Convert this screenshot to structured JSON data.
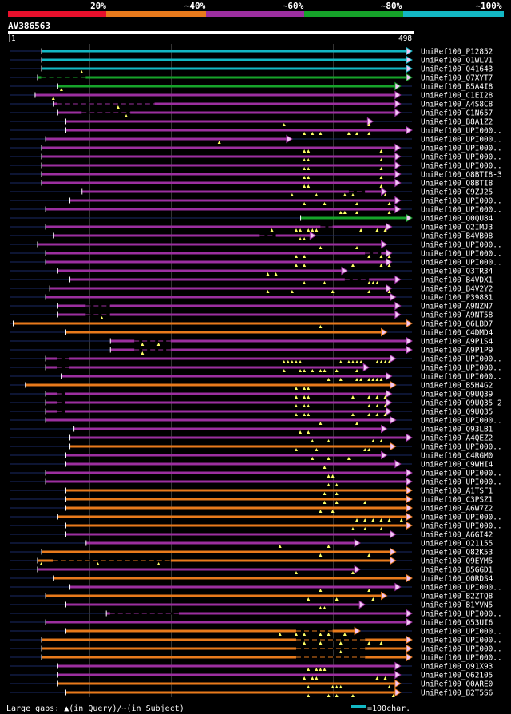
{
  "identity_legend": {
    "labels": [
      "20%",
      "~40%",
      "~60%",
      "~80%",
      "~100%"
    ],
    "colors": [
      "#e8102c",
      "#e87a1c",
      "#9c2fa0",
      "#16a32a",
      "#13b8c4"
    ]
  },
  "query": {
    "id": "AV386563",
    "start": "1",
    "end": "498",
    "length": 498
  },
  "colors": {
    "background": "#000000",
    "dim_line": "#1a2a66",
    "gap_mark": "#ffff66",
    "arrow_fill": "#f2c6f5"
  },
  "hits": [
    {
      "label": "UniRef100_P12852",
      "start": 40,
      "end": 498,
      "color": "#13b8c4",
      "marks": [],
      "breaks": []
    },
    {
      "label": "UniRef100_Q1WLV1",
      "start": 40,
      "end": 498,
      "color": "#13b8c4",
      "marks": [],
      "breaks": []
    },
    {
      "label": "UniRef100_Q41643",
      "start": 40,
      "end": 498,
      "color": "#13b8c4",
      "marks": [
        90
      ],
      "breaks": []
    },
    {
      "label": "UniRef100_Q7XYT7",
      "start": 35,
      "end": 498,
      "color": "#16a32a",
      "marks": [],
      "breaks": [
        [
          40,
          95
        ]
      ]
    },
    {
      "label": "UniRef100_B5A4I8",
      "start": 60,
      "end": 484,
      "color": "#16a32a",
      "marks": [
        65
      ],
      "breaks": []
    },
    {
      "label": "UniRef100_C1EI28",
      "start": 32,
      "end": 484,
      "color": "#9c2fa0",
      "marks": [
        55
      ],
      "breaks": []
    },
    {
      "label": "UniRef100_A4S8C8",
      "start": 55,
      "end": 484,
      "color": "#9c2fa0",
      "marks": [
        135
      ],
      "breaks": [
        [
          60,
          180
        ]
      ]
    },
    {
      "label": "UniRef100_C1N657",
      "start": 60,
      "end": 484,
      "color": "#9c2fa0",
      "marks": [
        145
      ],
      "breaks": [
        [
          90,
          150
        ]
      ]
    },
    {
      "label": "UniRef100_B8A1Z2",
      "start": 70,
      "end": 450,
      "color": "#9c2fa0",
      "marks": [
        340,
        445
      ],
      "breaks": []
    },
    {
      "label": "UniRef100_UPI000..",
      "start": 70,
      "end": 498,
      "color": "#9c2fa0",
      "marks": [
        365,
        375,
        385,
        420,
        430,
        445
      ],
      "breaks": []
    },
    {
      "label": "UniRef100_UPI000..",
      "start": 45,
      "end": 350,
      "color": "#9c2fa0",
      "marks": [
        260
      ],
      "breaks": []
    },
    {
      "label": "UniRef100_UPI000..",
      "start": 40,
      "end": 484,
      "color": "#9c2fa0",
      "marks": [
        365,
        370,
        460
      ],
      "breaks": []
    },
    {
      "label": "UniRef100_UPI000..",
      "start": 40,
      "end": 484,
      "color": "#9c2fa0",
      "marks": [
        365,
        370,
        460
      ],
      "breaks": []
    },
    {
      "label": "UniRef100_UPI000..",
      "start": 40,
      "end": 484,
      "color": "#9c2fa0",
      "marks": [
        365,
        370,
        460
      ],
      "breaks": []
    },
    {
      "label": "UniRef100_Q8BTI8-3",
      "start": 40,
      "end": 484,
      "color": "#9c2fa0",
      "marks": [
        365,
        370,
        460
      ],
      "breaks": []
    },
    {
      "label": "UniRef100_Q8BTI8",
      "start": 40,
      "end": 484,
      "color": "#9c2fa0",
      "marks": [
        365,
        370,
        460
      ],
      "breaks": []
    },
    {
      "label": "UniRef100_C9ZJ25",
      "start": 90,
      "end": 467,
      "color": "#9c2fa0",
      "marks": [
        350,
        380,
        415,
        425,
        465
      ],
      "breaks": [
        [
          420,
          440
        ]
      ]
    },
    {
      "label": "UniRef100_UPI000..",
      "start": 75,
      "end": 484,
      "color": "#9c2fa0",
      "marks": [
        365,
        390,
        430,
        470
      ],
      "breaks": []
    },
    {
      "label": "UniRef100_UPI000..",
      "start": 45,
      "end": 484,
      "color": "#9c2fa0",
      "marks": [
        410,
        415,
        430,
        470
      ],
      "breaks": []
    },
    {
      "label": "UniRef100_Q0QU84",
      "start": 360,
      "end": 498,
      "color": "#16a32a",
      "marks": [],
      "breaks": []
    },
    {
      "label": "UniRef100_Q2IMJ3",
      "start": 45,
      "end": 473,
      "color": "#9c2fa0",
      "marks": [
        325,
        355,
        360,
        370,
        375,
        380,
        435,
        455,
        465
      ],
      "breaks": [
        [
          385,
          400
        ]
      ]
    },
    {
      "label": "UniRef100_B4VB08",
      "start": 55,
      "end": 379,
      "color": "#9c2fa0",
      "marks": [
        360,
        365
      ],
      "breaks": [
        [
          310,
          330
        ]
      ]
    },
    {
      "label": "UniRef100_UPI000..",
      "start": 35,
      "end": 467,
      "color": "#9c2fa0",
      "marks": [
        385,
        430
      ],
      "breaks": []
    },
    {
      "label": "UniRef100_UPI000..",
      "start": 45,
      "end": 473,
      "color": "#9c2fa0",
      "marks": [
        355,
        365,
        445,
        460,
        470
      ],
      "breaks": [
        [
          440,
          460
        ]
      ]
    },
    {
      "label": "UniRef100_UPI000..",
      "start": 45,
      "end": 473,
      "color": "#9c2fa0",
      "marks": [
        355,
        365,
        425,
        460,
        470
      ],
      "breaks": []
    },
    {
      "label": "UniRef100_Q3TR34",
      "start": 60,
      "end": 418,
      "color": "#9c2fa0",
      "marks": [
        320,
        330
      ],
      "breaks": []
    },
    {
      "label": "UniRef100_B4VDX1",
      "start": 75,
      "end": 484,
      "color": "#9c2fa0",
      "marks": [
        365,
        390,
        445,
        450,
        455
      ],
      "breaks": [
        [
          415,
          445
        ]
      ]
    },
    {
      "label": "UniRef100_B4V2Y2",
      "start": 50,
      "end": 473,
      "color": "#9c2fa0",
      "marks": [
        320,
        350,
        400,
        445,
        470
      ],
      "breaks": []
    },
    {
      "label": "UniRef100_P39881",
      "start": 45,
      "end": 478,
      "color": "#9c2fa0",
      "marks": [],
      "breaks": []
    },
    {
      "label": "UniRef100_A9NZN7",
      "start": 60,
      "end": 484,
      "color": "#9c2fa0",
      "marks": [],
      "breaks": [
        [
          95,
          125
        ]
      ]
    },
    {
      "label": "UniRef100_A9NT58",
      "start": 60,
      "end": 484,
      "color": "#9c2fa0",
      "marks": [
        115
      ],
      "breaks": [
        [
          95,
          125
        ]
      ]
    },
    {
      "label": "UniRef100_Q6LBD7",
      "start": 5,
      "end": 498,
      "color": "#e87a1c",
      "marks": [
        385
      ],
      "breaks": []
    },
    {
      "label": "UniRef100_C4DMD4",
      "start": 70,
      "end": 467,
      "color": "#e87a1c",
      "marks": [],
      "breaks": []
    },
    {
      "label": "UniRef100_A9P1S4",
      "start": 125,
      "end": 498,
      "color": "#9c2fa0",
      "marks": [
        165,
        185
      ],
      "breaks": [
        [
          155,
          200
        ]
      ]
    },
    {
      "label": "UniRef100_A9P1P9",
      "start": 125,
      "end": 498,
      "color": "#9c2fa0",
      "marks": [
        165
      ],
      "breaks": [
        [
          155,
          200
        ]
      ]
    },
    {
      "label": "UniRef100_UPI000..",
      "start": 45,
      "end": 478,
      "color": "#9c2fa0",
      "marks": [
        340,
        345,
        350,
        355,
        360,
        410,
        420,
        425,
        430,
        435,
        455,
        460,
        465,
        470
      ],
      "breaks": [
        [
          60,
          75
        ]
      ]
    },
    {
      "label": "UniRef100_UPI000..",
      "start": 45,
      "end": 445,
      "color": "#9c2fa0",
      "marks": [
        340,
        360,
        365,
        375,
        385,
        390,
        405,
        430
      ],
      "breaks": [
        [
          60,
          75
        ]
      ]
    },
    {
      "label": "UniRef100_UPI000..",
      "start": 65,
      "end": 473,
      "color": "#9c2fa0",
      "marks": [
        395,
        410,
        430,
        435,
        445,
        450,
        455,
        460
      ],
      "breaks": []
    },
    {
      "label": "UniRef100_B5H4G2",
      "start": 20,
      "end": 478,
      "color": "#e87a1c",
      "marks": [
        355,
        365,
        370
      ],
      "breaks": []
    },
    {
      "label": "UniRef100_Q9UQ39",
      "start": 45,
      "end": 473,
      "color": "#9c2fa0",
      "marks": [
        355,
        365,
        370,
        425,
        445,
        455,
        465
      ],
      "breaks": [
        [
          60,
          70
        ]
      ]
    },
    {
      "label": "UniRef100_Q9UQ35-2",
      "start": 45,
      "end": 473,
      "color": "#9c2fa0",
      "marks": [
        355,
        365,
        370,
        445,
        455,
        465
      ],
      "breaks": [
        [
          60,
          70
        ]
      ]
    },
    {
      "label": "UniRef100_Q9UQ35",
      "start": 45,
      "end": 473,
      "color": "#9c2fa0",
      "marks": [
        355,
        365,
        370,
        425,
        445,
        455,
        465
      ],
      "breaks": [
        [
          60,
          70
        ]
      ]
    },
    {
      "label": "UniRef100_UPI000..",
      "start": 45,
      "end": 478,
      "color": "#9c2fa0",
      "marks": [
        385,
        430
      ],
      "breaks": []
    },
    {
      "label": "UniRef100_Q93LB1",
      "start": 80,
      "end": 467,
      "color": "#9c2fa0",
      "marks": [
        360,
        370
      ],
      "breaks": []
    },
    {
      "label": "UniRef100_A4QEZ2",
      "start": 75,
      "end": 498,
      "color": "#9c2fa0",
      "marks": [
        375,
        395,
        450,
        460
      ],
      "breaks": []
    },
    {
      "label": "UniRef100_UPI000..",
      "start": 75,
      "end": 478,
      "color": "#e87a1c",
      "marks": [
        355,
        380,
        440,
        445
      ],
      "breaks": []
    },
    {
      "label": "UniRef100_C4RGM0",
      "start": 70,
      "end": 467,
      "color": "#9c2fa0",
      "marks": [
        375,
        395,
        420
      ],
      "breaks": []
    },
    {
      "label": "UniRef100_C9WHI4",
      "start": 70,
      "end": 484,
      "color": "#9c2fa0",
      "marks": [
        390
      ],
      "breaks": []
    },
    {
      "label": "UniRef100_UPI000..",
      "start": 45,
      "end": 498,
      "color": "#9c2fa0",
      "marks": [
        395,
        400
      ],
      "breaks": []
    },
    {
      "label": "UniRef100_UPI000..",
      "start": 45,
      "end": 498,
      "color": "#9c2fa0",
      "marks": [
        395,
        405
      ],
      "breaks": []
    },
    {
      "label": "UniRef100_A1TSF1",
      "start": 70,
      "end": 498,
      "color": "#e87a1c",
      "marks": [
        390,
        405
      ],
      "breaks": []
    },
    {
      "label": "UniRef100_C3PSZ1",
      "start": 70,
      "end": 498,
      "color": "#e87a1c",
      "marks": [
        390,
        405,
        440
      ],
      "breaks": []
    },
    {
      "label": "UniRef100_A6W7Z2",
      "start": 70,
      "end": 498,
      "color": "#e87a1c",
      "marks": [
        385,
        400
      ],
      "breaks": []
    },
    {
      "label": "UniRef100_UPI000..",
      "start": 60,
      "end": 498,
      "color": "#e87a1c",
      "marks": [
        430,
        440,
        450,
        460,
        470,
        485
      ],
      "breaks": []
    },
    {
      "label": "UniRef100_UPI000..",
      "start": 70,
      "end": 498,
      "color": "#e87a1c",
      "marks": [
        425,
        440,
        460
      ],
      "breaks": []
    },
    {
      "label": "UniRef100_A6GI42",
      "start": 70,
      "end": 478,
      "color": "#9c2fa0",
      "marks": [],
      "breaks": []
    },
    {
      "label": "UniRef100_Q21155",
      "start": 95,
      "end": 434,
      "color": "#9c2fa0",
      "marks": [
        335,
        395
      ],
      "breaks": []
    },
    {
      "label": "UniRef100_Q82K53",
      "start": 40,
      "end": 478,
      "color": "#e87a1c",
      "marks": [
        385,
        445
      ],
      "breaks": []
    },
    {
      "label": "UniRef100_Q9EYM5",
      "start": 35,
      "end": 478,
      "color": "#e87a1c",
      "marks": [
        40,
        110,
        185
      ],
      "breaks": [
        [
          55,
          200
        ]
      ]
    },
    {
      "label": "UniRef100_B5GGD1",
      "start": 35,
      "end": 434,
      "color": "#9c2fa0",
      "marks": [
        355,
        425
      ],
      "breaks": []
    },
    {
      "label": "UniRef100_Q0RDS4",
      "start": 55,
      "end": 498,
      "color": "#e87a1c",
      "marks": [],
      "breaks": []
    },
    {
      "label": "UniRef100_UPI000..",
      "start": 75,
      "end": 484,
      "color": "#9c2fa0",
      "marks": [
        385,
        445
      ],
      "breaks": []
    },
    {
      "label": "UniRef100_B2ZTQ8",
      "start": 45,
      "end": 467,
      "color": "#e87a1c",
      "marks": [
        370,
        405,
        450
      ],
      "breaks": []
    },
    {
      "label": "UniRef100_B1YVN5",
      "start": 70,
      "end": 440,
      "color": "#9c2fa0",
      "marks": [
        385,
        390
      ],
      "breaks": []
    },
    {
      "label": "UniRef100_UPI000..",
      "start": 120,
      "end": 498,
      "color": "#9c2fa0",
      "marks": [],
      "breaks": [
        [
          125,
          210
        ]
      ]
    },
    {
      "label": "UniRef100_Q53UI6",
      "start": 45,
      "end": 498,
      "color": "#9c2fa0",
      "marks": [],
      "breaks": []
    },
    {
      "label": "UniRef100_UPI000..",
      "start": 70,
      "end": 434,
      "color": "#e87a1c",
      "marks": [
        335,
        355,
        365,
        385,
        395,
        415
      ],
      "breaks": [
        [
          355,
          400
        ]
      ]
    },
    {
      "label": "UniRef100_UPI000..",
      "start": 40,
      "end": 498,
      "color": "#e87a1c",
      "marks": [
        365,
        385,
        410,
        445,
        460
      ],
      "breaks": [
        [
          355,
          440
        ]
      ]
    },
    {
      "label": "UniRef100_UPI000..",
      "start": 40,
      "end": 498,
      "color": "#e87a1c",
      "marks": [
        410
      ],
      "breaks": [
        [
          355,
          440
        ]
      ]
    },
    {
      "label": "UniRef100_UPI000..",
      "start": 40,
      "end": 498,
      "color": "#e87a1c",
      "marks": [],
      "breaks": [
        [
          355,
          440
        ]
      ]
    },
    {
      "label": "UniRef100_Q91X93",
      "start": 60,
      "end": 484,
      "color": "#9c2fa0",
      "marks": [
        370,
        380,
        385,
        390
      ],
      "breaks": []
    },
    {
      "label": "UniRef100_Q62105",
      "start": 60,
      "end": 484,
      "color": "#9c2fa0",
      "marks": [
        365,
        375,
        380,
        455,
        465
      ],
      "breaks": []
    },
    {
      "label": "UniRef100_Q0ARE0",
      "start": 60,
      "end": 484,
      "color": "#e87a1c",
      "marks": [
        370,
        400,
        405,
        410,
        470
      ],
      "breaks": []
    },
    {
      "label": "UniRef100_B2T5S6",
      "start": 70,
      "end": 484,
      "color": "#e87a1c",
      "marks": [
        370,
        395,
        405,
        425,
        475
      ],
      "breaks": []
    }
  ],
  "footer": {
    "legend_text": "Large gaps: ▲(in Query)/~(in Subject)",
    "scale_text": "=100char.",
    "scale_chars": 100,
    "scale_color": "#13b8c4"
  }
}
